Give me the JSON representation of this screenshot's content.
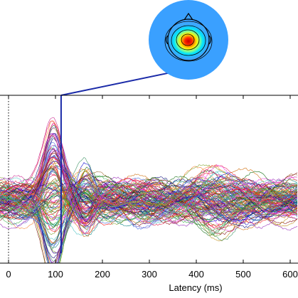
{
  "chart_data": {
    "type": "line",
    "title": "",
    "xlabel": "Latency (ms)",
    "ylabel": "",
    "xlim": [
      -20,
      610
    ],
    "x_ticks": [
      0,
      100,
      200,
      300,
      400,
      500,
      600
    ],
    "x_tick_labels": [
      "0",
      "100",
      "200",
      "300",
      "400",
      "500",
      "600"
    ],
    "grid": false,
    "legend": "none",
    "series_count": 128,
    "stimulus_onset_ms": 0,
    "peak_latency_ms": 112,
    "scalp_map": "head topography inset connected to the peak latency marker",
    "colors": {
      "axis": "#000000",
      "marker": "#1a2aa8",
      "background": "#ffffff"
    }
  }
}
